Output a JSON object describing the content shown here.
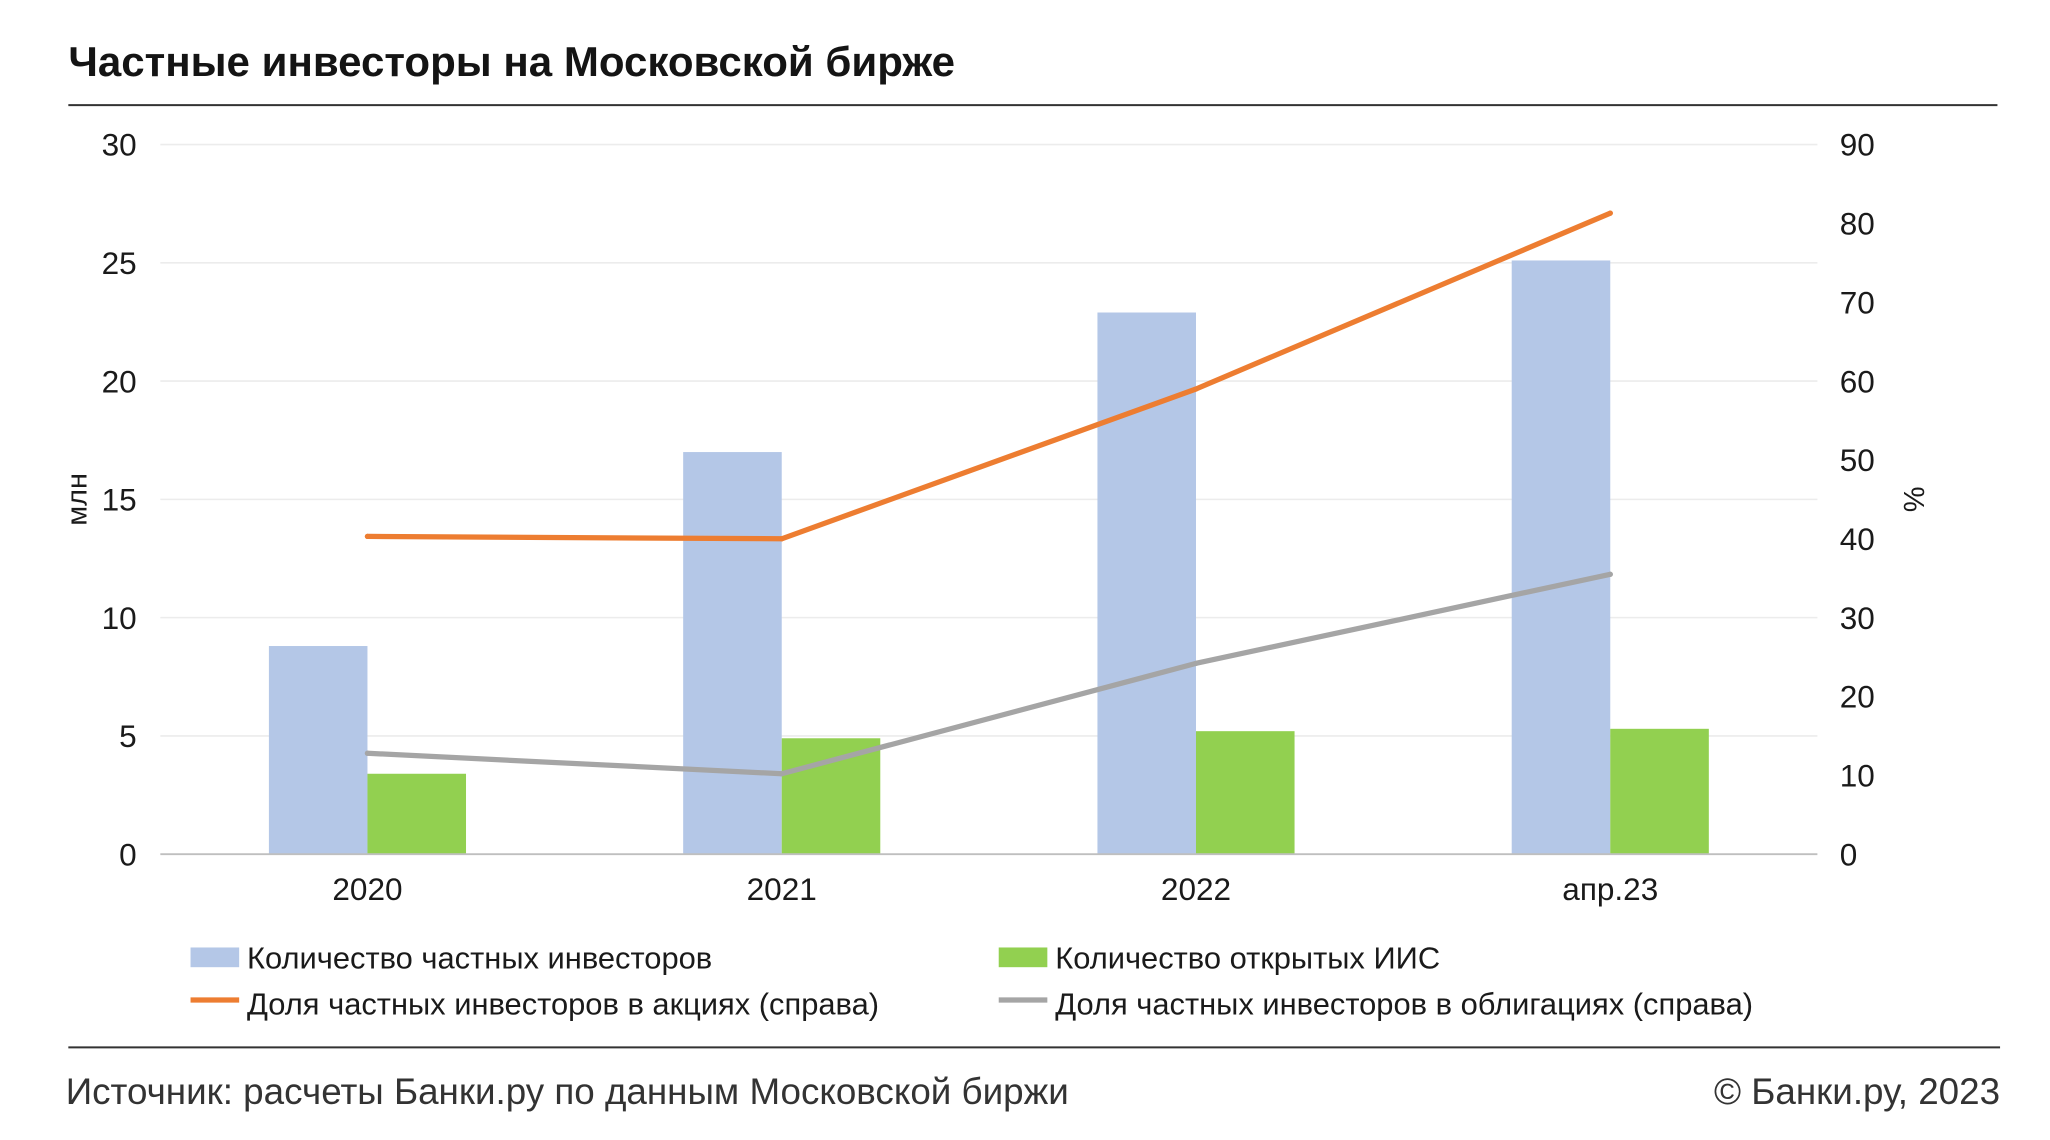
{
  "title": "Частные инвесторы на Московской бирже",
  "chart_data": {
    "type": "bar",
    "categories": [
      "2020",
      "2021",
      "2022",
      "апр.23"
    ],
    "series": [
      {
        "name": "Количество частных инвесторов",
        "type": "bar",
        "axis": "left",
        "color": "#B4C7E7",
        "values": [
          8.8,
          17.0,
          22.9,
          25.1
        ]
      },
      {
        "name": "Количество открытых ИИС",
        "type": "bar",
        "axis": "left",
        "color": "#92D050",
        "values": [
          3.4,
          4.9,
          5.2,
          5.3
        ]
      },
      {
        "name": "Доля частных инвесторов в акциях (справа)",
        "type": "line",
        "axis": "right",
        "color": "#ED7D31",
        "values": [
          40.3,
          40.0,
          59.0,
          81.3
        ]
      },
      {
        "name": "Доля частных инвесторов в облигациях (справа)",
        "type": "line",
        "axis": "right",
        "color": "#A5A5A5",
        "values": [
          12.8,
          10.2,
          24.2,
          35.5
        ]
      }
    ],
    "ylabel": "млн",
    "ylim": [
      0,
      30
    ],
    "yticks": [
      "0",
      "5",
      "10",
      "15",
      "20",
      "25",
      "30"
    ],
    "y2label": "%",
    "y2lim": [
      0,
      90
    ],
    "y2ticks": [
      "0",
      "10",
      "20",
      "30",
      "40",
      "50",
      "60",
      "70",
      "80",
      "90"
    ],
    "grid": true,
    "legend_position": "bottom"
  },
  "source": "Источник: расчеты Банки.ру по данным Московской биржи",
  "copyright": "© Банки.ру, 2023"
}
